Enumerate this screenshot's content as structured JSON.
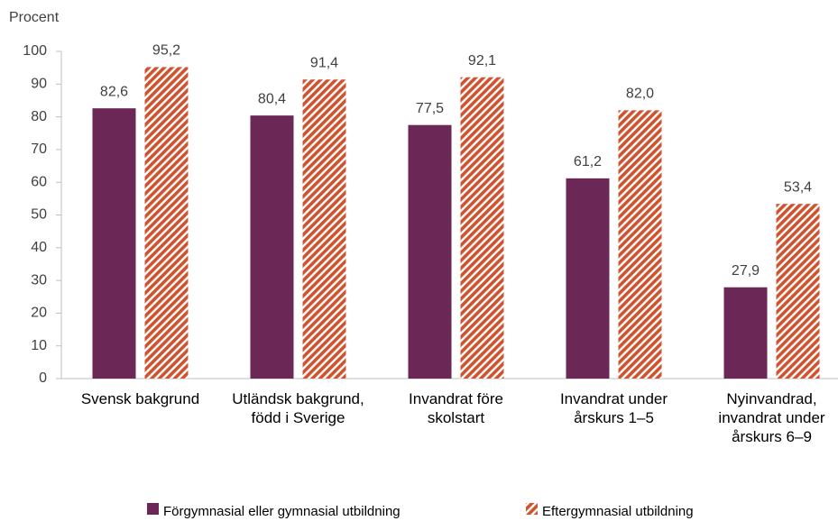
{
  "chart_data": {
    "type": "bar",
    "ylabel": "Procent",
    "categories": [
      "Svensk bakgrund",
      "Utländsk bakgrund, född i Sverige",
      "Invandrat före skolstart",
      "Invandrat under årskurs 1–5",
      "Nyinvandrad, invandrat under årskurs 6–9"
    ],
    "series": [
      {
        "name": "Förgymnasial eller gymnasial utbildning",
        "color": "#6b2857",
        "pattern": "solid",
        "values": [
          82.6,
          80.4,
          77.5,
          61.2,
          27.9
        ],
        "value_labels": [
          "82,6",
          "80,4",
          "77,5",
          "61,2",
          "27,9"
        ]
      },
      {
        "name": "Eftergymnasial utbildning",
        "color": "#d0532f",
        "pattern": "hatch",
        "values": [
          95.2,
          91.4,
          92.1,
          82.0,
          53.4
        ],
        "value_labels": [
          "95,2",
          "91,4",
          "92,1",
          "82,0",
          "53,4"
        ]
      }
    ],
    "ylim": [
      0,
      100
    ],
    "yticks": [
      0,
      10,
      20,
      30,
      40,
      50,
      60,
      70,
      80,
      90,
      100
    ],
    "grid": false,
    "legend": "bottom"
  }
}
